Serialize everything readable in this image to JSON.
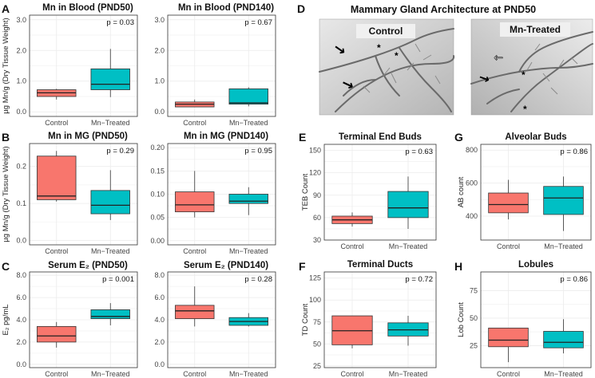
{
  "figure": {
    "image_panel": {
      "letter": "D",
      "title": "Mammary Gland Architecture at PND50",
      "left_label": "Control",
      "right_label": "Mn-Treated",
      "markers": {
        "arrow": "→",
        "star": "*"
      }
    },
    "colors": {
      "control": "#f8766d",
      "treated": "#00bfc4"
    },
    "ylabels": {
      "A": "µg Mn/g (Dry Tissue Weight)",
      "B": "µg Mn/g (Dry Tissue Weight)",
      "C": "E₂ pg/mL",
      "E": "TEB Count",
      "G": "AB count",
      "F": "TD Count",
      "H": "Lob Count"
    }
  },
  "chart_data": [
    {
      "id": "A1",
      "letter": "A",
      "type": "box",
      "title": "Mn in Blood (PND50)",
      "pvalue": "p = 0.03",
      "categories": [
        "Control",
        "Mn−Treated"
      ],
      "ylim": [
        -0.15,
        3.15
      ],
      "yticks": [
        "0.0",
        "1.0",
        "2.0",
        "3.0"
      ],
      "ytickvals": [
        0,
        1,
        2,
        3
      ],
      "boxes": [
        {
          "min": 0.4,
          "q1": 0.5,
          "median": 0.62,
          "q3": 0.72,
          "max": 0.75
        },
        {
          "min": 0.48,
          "q1": 0.72,
          "median": 0.9,
          "q3": 1.4,
          "max": 2.05
        }
      ]
    },
    {
      "id": "A2",
      "letter": "",
      "type": "box",
      "title": "Mn in Blood (PND140)",
      "pvalue": "p = 0.67",
      "categories": [
        "Control",
        "Mn−Treated"
      ],
      "ylim": [
        -0.15,
        3.15
      ],
      "yticks": [
        "0.0",
        "1.0",
        "2.0",
        "3.0"
      ],
      "ytickvals": [
        0,
        1,
        2,
        3
      ],
      "boxes": [
        {
          "min": 0.15,
          "q1": 0.16,
          "median": 0.25,
          "q3": 0.32,
          "max": 0.4
        },
        {
          "min": 0.18,
          "q1": 0.25,
          "median": 0.29,
          "q3": 0.75,
          "max": 0.8
        }
      ]
    },
    {
      "id": "B1",
      "letter": "B",
      "type": "box",
      "title": "Mn in MG (PND50)",
      "pvalue": "p = 0.29",
      "categories": [
        "Control",
        "Mn−Treated"
      ],
      "ylim": [
        -0.012,
        0.262
      ],
      "yticks": [
        "0.0",
        "0.1",
        "0.2"
      ],
      "ytickvals": [
        0,
        0.1,
        0.2
      ],
      "boxes": [
        {
          "min": 0.105,
          "q1": 0.11,
          "median": 0.12,
          "q3": 0.228,
          "max": 0.242
        },
        {
          "min": 0.055,
          "q1": 0.072,
          "median": 0.095,
          "q3": 0.135,
          "max": 0.19
        }
      ]
    },
    {
      "id": "B2",
      "letter": "",
      "type": "box",
      "title": "Mn in MG (PND140)",
      "pvalue": "p = 0.95",
      "categories": [
        "Control",
        "Mn−Treated"
      ],
      "ylim": [
        -0.009,
        0.209
      ],
      "yticks": [
        "0.00",
        "0.05",
        "0.10",
        "0.15",
        "0.20"
      ],
      "ytickvals": [
        0,
        0.05,
        0.1,
        0.15,
        0.2
      ],
      "boxes": [
        {
          "min": 0.05,
          "q1": 0.062,
          "median": 0.077,
          "q3": 0.105,
          "max": 0.15
        },
        {
          "min": 0.055,
          "q1": 0.08,
          "median": 0.085,
          "q3": 0.1,
          "max": 0.115
        }
      ]
    },
    {
      "id": "C1",
      "letter": "C",
      "type": "box",
      "title": "Serum E₂ (PND50)",
      "pvalue": "p = 0.001",
      "categories": [
        "Control",
        "Mn−Treated"
      ],
      "ylim": [
        -0.3,
        8.3
      ],
      "yticks": [
        "0.0",
        "2.0",
        "4.0",
        "6.0",
        "8.0"
      ],
      "ytickvals": [
        0,
        2,
        4,
        6,
        8
      ],
      "boxes": [
        {
          "min": 1.5,
          "q1": 2.0,
          "median": 2.55,
          "q3": 3.4,
          "max": 3.8
        },
        {
          "min": 3.5,
          "q1": 4.1,
          "median": 4.3,
          "q3": 4.9,
          "max": 5.5
        }
      ]
    },
    {
      "id": "C2",
      "letter": "",
      "type": "box",
      "title": "Serum E₂ (PND140)",
      "pvalue": "p = 0.28",
      "categories": [
        "Control",
        "Mn−Treated"
      ],
      "ylim": [
        -0.3,
        8.3
      ],
      "yticks": [
        "0.0",
        "2.0",
        "4.0",
        "6.0",
        "8.0"
      ],
      "ytickvals": [
        0,
        2,
        4,
        6,
        8
      ],
      "boxes": [
        {
          "min": 3.4,
          "q1": 4.1,
          "median": 4.8,
          "q3": 5.3,
          "max": 7.0
        },
        {
          "min": 3.4,
          "q1": 3.5,
          "median": 3.85,
          "q3": 4.2,
          "max": 4.6
        }
      ]
    },
    {
      "id": "E",
      "letter": "E",
      "type": "box",
      "title": "Terminal End Buds",
      "pvalue": "p = 0.63",
      "categories": [
        "Control",
        "Mn−Treated"
      ],
      "ylim": [
        30,
        158
      ],
      "yticks": [
        "30",
        "60",
        "90",
        "120",
        "150"
      ],
      "ytickvals": [
        30,
        60,
        90,
        120,
        150
      ],
      "boxes": [
        {
          "min": 48,
          "q1": 52,
          "median": 57,
          "q3": 62,
          "max": 67
        },
        {
          "min": 45,
          "q1": 60,
          "median": 73,
          "q3": 95,
          "max": 115
        }
      ]
    },
    {
      "id": "G",
      "letter": "G",
      "type": "box",
      "title": "Alveolar Buds",
      "pvalue": "p = 0.86",
      "categories": [
        "Control",
        "Mn−Treated"
      ],
      "ylim": [
        255,
        835
      ],
      "yticks": [
        "400",
        "600",
        "800"
      ],
      "ytickvals": [
        400,
        600,
        800
      ],
      "boxes": [
        {
          "min": 380,
          "q1": 420,
          "median": 470,
          "q3": 540,
          "max": 620
        },
        {
          "min": 310,
          "q1": 410,
          "median": 510,
          "q3": 580,
          "max": 640
        }
      ]
    },
    {
      "id": "F",
      "letter": "F",
      "type": "box",
      "title": "Terminal Ducts",
      "pvalue": "p = 0.72",
      "categories": [
        "Control",
        "Mn−Treated"
      ],
      "ylim": [
        23,
        132
      ],
      "yticks": [
        "25",
        "50",
        "75",
        "100",
        "125"
      ],
      "ytickvals": [
        25,
        50,
        75,
        100,
        125
      ],
      "boxes": [
        {
          "min": 45,
          "q1": 49,
          "median": 65,
          "q3": 82,
          "max": 82
        },
        {
          "min": 48,
          "q1": 59,
          "median": 66,
          "q3": 74,
          "max": 82
        }
      ]
    },
    {
      "id": "H",
      "letter": "H",
      "type": "box",
      "title": "Lobules",
      "pvalue": "p = 0.86",
      "categories": [
        "Control",
        "Mn−Treated"
      ],
      "ylim": [
        5,
        92
      ],
      "yticks": [
        "25",
        "50",
        "75"
      ],
      "ytickvals": [
        25,
        50,
        75
      ],
      "boxes": [
        {
          "min": 10,
          "q1": 24,
          "median": 30,
          "q3": 41,
          "max": 41
        },
        {
          "min": 18,
          "q1": 23,
          "median": 28,
          "q3": 38,
          "max": 49
        }
      ]
    }
  ]
}
